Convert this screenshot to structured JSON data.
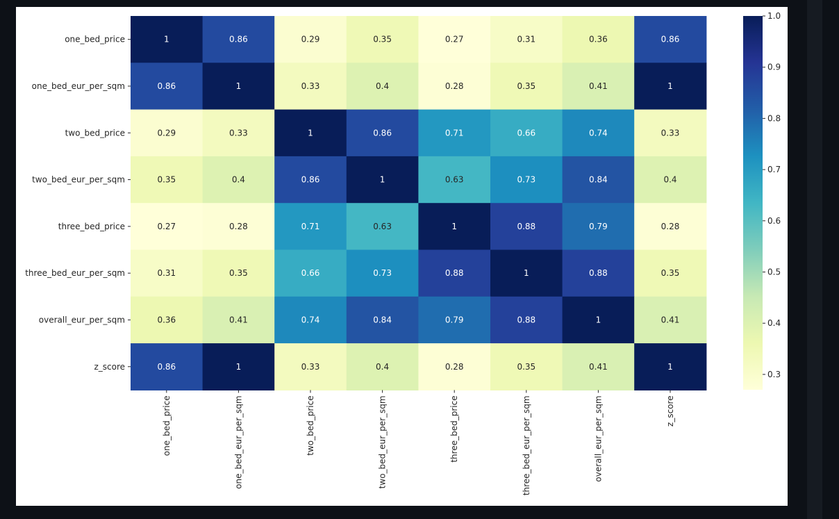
{
  "chart_data": {
    "type": "heatmap",
    "title": "",
    "xlabel": "",
    "ylabel": "",
    "colormap": "YlGnBu",
    "annotate": true,
    "vmin": 0.27,
    "vmax": 1.0,
    "colorbar_ticks": [
      0.3,
      0.4,
      0.5,
      0.6,
      0.7,
      0.8,
      0.9,
      1.0
    ],
    "colorbar_tick_labels": [
      "0.3",
      "0.4",
      "0.5",
      "0.6",
      "0.7",
      "0.8",
      "0.9",
      "1.0"
    ],
    "labels": [
      "one_bed_price",
      "one_bed_eur_per_sqm",
      "two_bed_price",
      "two_bed_eur_per_sqm",
      "three_bed_price",
      "three_bed_eur_per_sqm",
      "overall_eur_per_sqm",
      "z_score"
    ],
    "matrix": [
      [
        1,
        0.86,
        0.29,
        0.35,
        0.27,
        0.31,
        0.36,
        0.86
      ],
      [
        0.86,
        1,
        0.33,
        0.4,
        0.28,
        0.35,
        0.41,
        1
      ],
      [
        0.29,
        0.33,
        1,
        0.86,
        0.71,
        0.66,
        0.74,
        0.33
      ],
      [
        0.35,
        0.4,
        0.86,
        1,
        0.63,
        0.73,
        0.84,
        0.4
      ],
      [
        0.27,
        0.28,
        0.71,
        0.63,
        1,
        0.88,
        0.79,
        0.28
      ],
      [
        0.31,
        0.35,
        0.66,
        0.73,
        0.88,
        1,
        0.88,
        0.35
      ],
      [
        0.36,
        0.41,
        0.74,
        0.84,
        0.79,
        0.88,
        1,
        0.41
      ],
      [
        0.86,
        1,
        0.33,
        0.4,
        0.28,
        0.35,
        0.41,
        1
      ]
    ]
  }
}
